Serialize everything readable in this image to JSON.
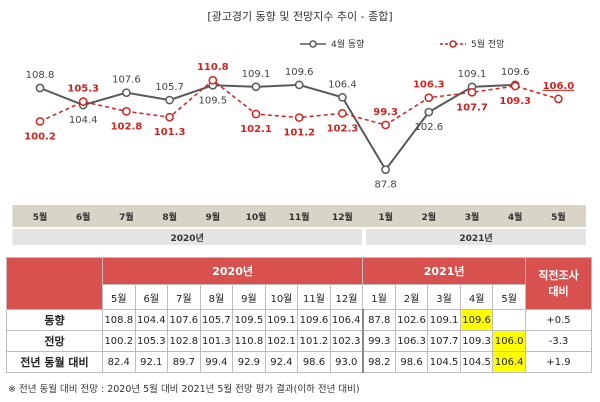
{
  "chart_data": {
    "type": "line",
    "title": "[광고경기 동향 및 전망지수 추이 - 종합]",
    "categories": [
      "5월",
      "6월",
      "7월",
      "8월",
      "9월",
      "10월",
      "11월",
      "12월",
      "1월",
      "2월",
      "3월",
      "4월",
      "5월"
    ],
    "year_groups": [
      {
        "label": "2020년",
        "from": 0,
        "to": 7
      },
      {
        "label": "2021년",
        "from": 8,
        "to": 12
      }
    ],
    "series": [
      {
        "name": "4월 동향",
        "color": "#595959",
        "values": [
          108.8,
          104.4,
          107.6,
          105.7,
          109.5,
          109.1,
          109.6,
          106.4,
          87.8,
          102.6,
          109.1,
          109.6,
          null
        ]
      },
      {
        "name": "5월 전망",
        "color": "#d0231f",
        "values": [
          100.2,
          105.3,
          102.8,
          101.3,
          110.8,
          102.1,
          101.2,
          102.3,
          99.3,
          106.3,
          107.7,
          109.3,
          106.0
        ]
      }
    ],
    "ylim": [
      80,
      116
    ]
  },
  "table": {
    "year_headers": [
      "2020년",
      "2021년"
    ],
    "last_header": "직전조사\n대비",
    "months": [
      "5월",
      "6월",
      "7월",
      "8월",
      "9월",
      "10월",
      "11월",
      "12월",
      "1월",
      "2월",
      "3월",
      "4월",
      "5월"
    ],
    "rows": [
      {
        "label": "동향",
        "values": [
          "108.8",
          "104.4",
          "107.6",
          "105.7",
          "109.5",
          "109.1",
          "109.6",
          "106.4",
          "87.8",
          "102.6",
          "109.1",
          "109.6",
          ""
        ],
        "change": "+0.5",
        "highlight": 11
      },
      {
        "label": "전망",
        "values": [
          "100.2",
          "105.3",
          "102.8",
          "101.3",
          "110.8",
          "102.1",
          "101.2",
          "102.3",
          "99.3",
          "106.3",
          "107.7",
          "109.3",
          "106.0"
        ],
        "change": "-3.3",
        "highlight": 12
      },
      {
        "label": "전년 동월 대비",
        "values": [
          "82.4",
          "92.1",
          "89.7",
          "99.4",
          "92.9",
          "92.4",
          "98.6",
          "93.0",
          "98.2",
          "98.6",
          "104.5",
          "104.5",
          "106.4"
        ],
        "change": "+1.9",
        "highlight": 12
      }
    ]
  },
  "note": "※ 전년 동월 대비 전망 : 2020년 5월 대비 2021년 5월 전망 평가 결과(이하 전년 대비)"
}
